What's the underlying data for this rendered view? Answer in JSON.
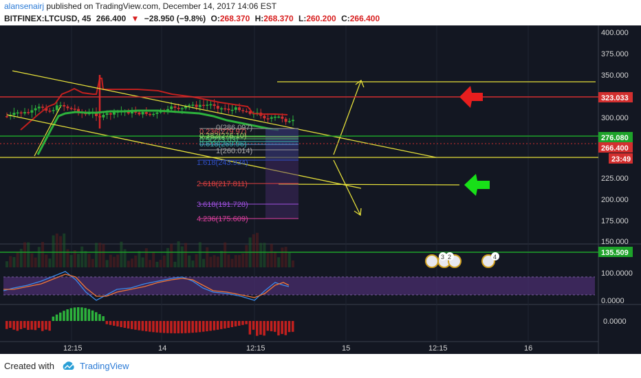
{
  "header": {
    "username": "alansenairj",
    "published_text": "published on TradingView.com, December 14, 2017 14:06 EST",
    "symbol": "BITFINEX:LTCUSD, 45",
    "last": "266.400",
    "change_arrow": "▼",
    "change": "−28.950 (−9.8%)",
    "o_label": "O:",
    "o_value": "268.370",
    "h_label": "H:",
    "h_value": "268.370",
    "l_label": "L:",
    "l_value": "260.200",
    "c_label": "C:",
    "c_value": "266.400"
  },
  "price_axis": {
    "ticks": [
      "400.000",
      "375.000",
      "350.000",
      "325.000",
      "300.000",
      "275.000",
      "250.000",
      "225.000",
      "200.000",
      "175.000",
      "150.000"
    ],
    "badges": [
      {
        "value": "323.033",
        "color": "#d32f2f"
      },
      {
        "value": "276.080",
        "color": "#1ea32a"
      },
      {
        "value": "266.400",
        "color": "#d32f2f"
      },
      {
        "value": "23:49",
        "color": "#d32f2f"
      },
      {
        "value": "135.509",
        "color": "#1ea32a"
      }
    ]
  },
  "oscillator_axis": {
    "top": "100.0000",
    "bottom": "0.0000"
  },
  "macd_axis": {
    "zero": "0.0000"
  },
  "time_axis": [
    "12:15",
    "14",
    "12:15",
    "15",
    "12:15",
    "16"
  ],
  "fib_labels": [
    {
      "text": "0(286.097)",
      "color": "#aaaaaa"
    },
    {
      "text": "0.236(279.97)",
      "color": "#e05050"
    },
    {
      "text": "0.382(276.10)",
      "color": "#9bd36a"
    },
    {
      "text": "0.5(273.03)",
      "color": "#52c873"
    },
    {
      "text": "0.618(269.96)",
      "color": "#38b6b0"
    },
    {
      "text": "0.786(265.57)",
      "color": "#5aa0e0"
    },
    {
      "text": "1(260.014)",
      "color": "#aaaaaa"
    },
    {
      "text": "1.618(243.934)",
      "color": "#3050c8"
    },
    {
      "text": "2.618(217.811)",
      "color": "#e04040"
    },
    {
      "text": "3.618(191.728)",
      "color": "#a050e0"
    },
    {
      "text": "4.236(175.609)",
      "color": "#e040a0"
    }
  ],
  "event_markers": [
    {
      "count": "3"
    },
    {
      "count": "2"
    },
    {
      "count": "4"
    }
  ],
  "footer": {
    "created_with": "Created with",
    "brand": "TradingView"
  }
}
